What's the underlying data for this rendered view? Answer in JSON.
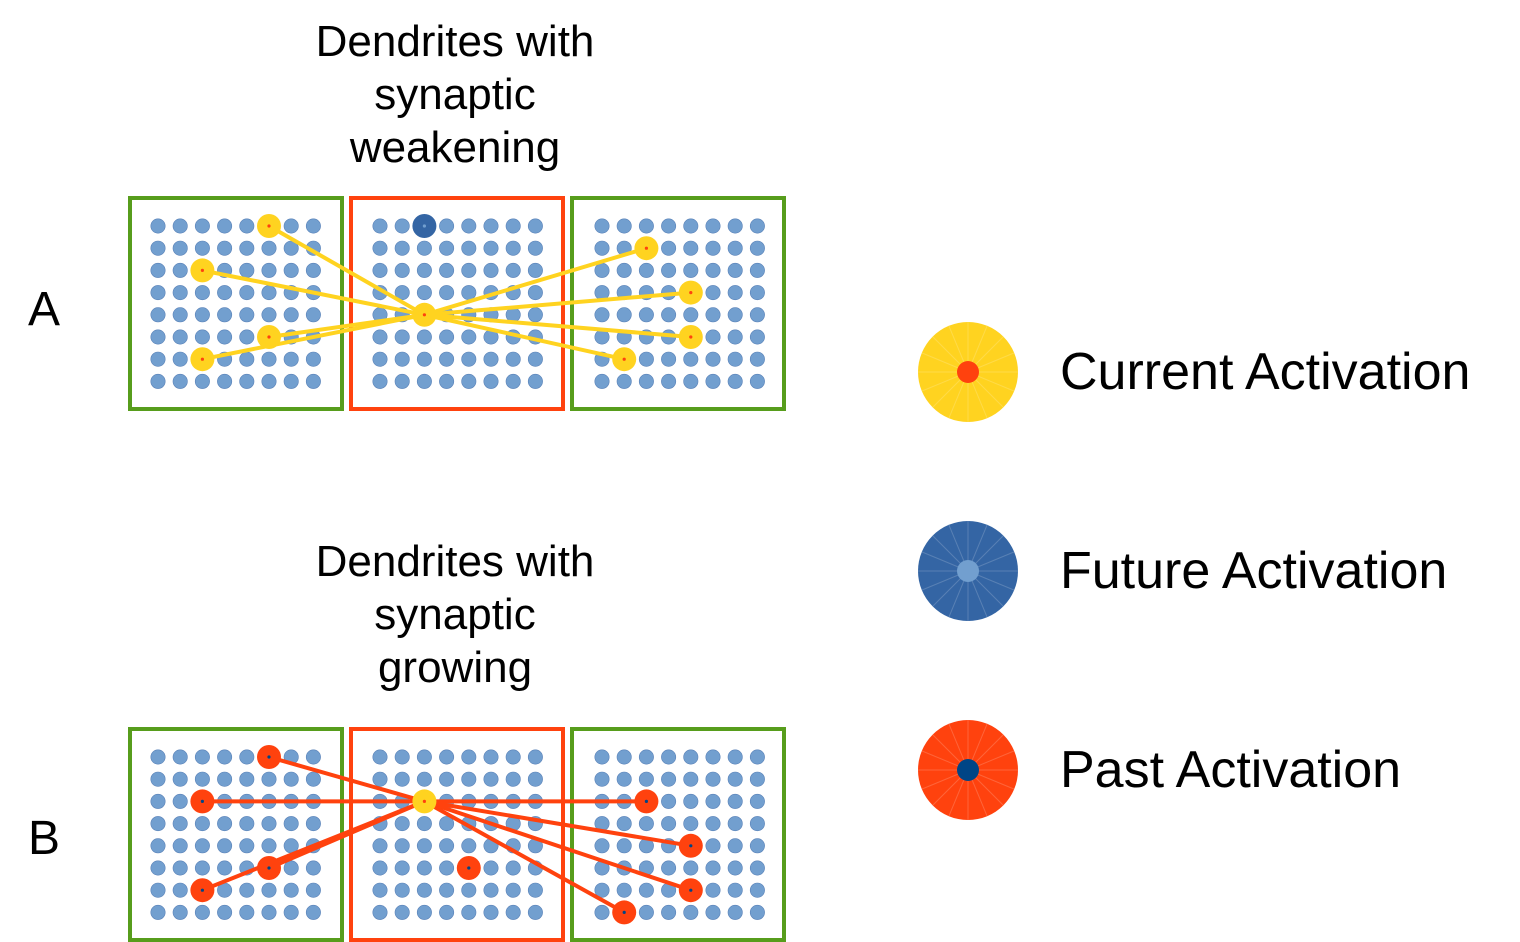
{
  "panel_a": {
    "label": "A",
    "title_lines": [
      "Dendrites with",
      "synaptic",
      "weakening"
    ],
    "source_cell": [
      2,
      4
    ],
    "current": [
      [
        1,
        5,
        0
      ],
      [
        1,
        2,
        2
      ],
      [
        1,
        5,
        5
      ],
      [
        1,
        2,
        6
      ],
      [
        3,
        2,
        1
      ],
      [
        3,
        4,
        3
      ],
      [
        3,
        4,
        5
      ],
      [
        3,
        1,
        6
      ]
    ],
    "future": [
      [
        2,
        2,
        0
      ]
    ],
    "past": []
  },
  "panel_b": {
    "label": "B",
    "title_lines": [
      "Dendrites with",
      "synaptic",
      "growing"
    ],
    "source_cell": [
      2,
      2
    ],
    "current": [],
    "future": [],
    "past": [
      [
        1,
        5,
        0
      ],
      [
        1,
        2,
        2
      ],
      [
        1,
        5,
        5
      ],
      [
        1,
        2,
        6
      ],
      [
        3,
        2,
        2
      ],
      [
        3,
        4,
        4
      ],
      [
        3,
        4,
        6
      ],
      [
        3,
        1,
        7
      ]
    ],
    "extra_past": [
      [
        2,
        4,
        5
      ]
    ],
    "current_source": true
  },
  "legend": [
    {
      "label": "Current Activation",
      "outer": "#ffd320",
      "inner": "#ff420e"
    },
    {
      "label": "Future Activation",
      "outer": "#3465a4",
      "inner": "#729fcf"
    },
    {
      "label": "Past Activation",
      "outer": "#ff420e",
      "inner": "#004586"
    }
  ],
  "colors": {
    "neighbor_box": "#579d1c",
    "center_box": "#ff420e",
    "cell": "#729fcf",
    "current_link": "#ffd320",
    "past_link": "#ff420e"
  }
}
